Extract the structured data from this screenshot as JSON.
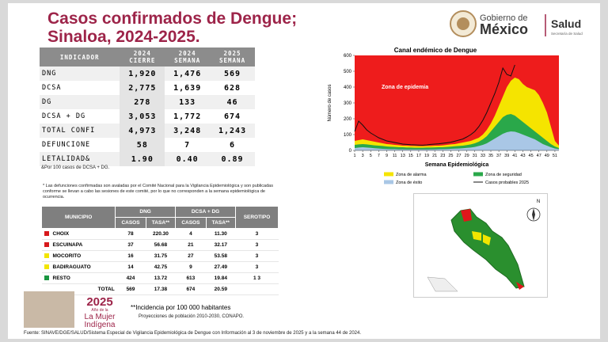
{
  "header": {
    "title_lines": [
      "Casos confirmados de Dengue;",
      "Sinaloa, 2024-2025."
    ],
    "gov_small": "Gobierno de",
    "gov_big": "México",
    "dept": "Salud",
    "dept_small": "Secretaría de Salud"
  },
  "table1": {
    "indicator": "INDICADOR",
    "columns": [
      [
        "2024",
        "CIERRE"
      ],
      [
        "2024",
        "SEMANA"
      ],
      [
        "2025",
        "SEMANA"
      ]
    ],
    "rows": [
      [
        "DNG",
        "1,920",
        "1,476",
        "569"
      ],
      [
        "DCSA",
        "2,775",
        "1,639",
        "628"
      ],
      [
        "DG",
        "278",
        "133",
        "46"
      ],
      [
        "DCSA + DG",
        "3,053",
        "1,772",
        "674"
      ],
      [
        "TOTAL CONFI",
        "4,973",
        "3,248",
        "1,243"
      ],
      [
        "DEFUNCIONE",
        "58",
        "7",
        "6"
      ],
      [
        "LETALIDAD&",
        "1.90",
        "0.40",
        "0.89"
      ]
    ],
    "note": "&Por 100 casos de DCSA + DG."
  },
  "footnote": "* Las defunciones confirmadas son avaladas por el Comité Nacional para la Vigilancia Epidemiológica y son publicadas conforme se llevan a cabo las sesiones de este comité, por lo que no corresponden a la semana epidemiológica de ocurrencia.",
  "table2": {
    "header_top": [
      "MUNICIPIO",
      "DNG",
      "DCSA + DG",
      "SEROTIPO"
    ],
    "header_sub": [
      "CASOS",
      "TASA**",
      "CASOS",
      "TASA**"
    ],
    "rows": [
      [
        "CHOIX",
        "78",
        "220.30",
        "4",
        "11.30",
        "3"
      ],
      [
        "ESCUINAPA",
        "37",
        "56.68",
        "21",
        "32.17",
        "3"
      ],
      [
        "MOCORITO",
        "16",
        "31.75",
        "27",
        "53.58",
        "3"
      ],
      [
        "BADIRAGUATO",
        "14",
        "42.75",
        "9",
        "27.49",
        "3"
      ],
      [
        "RESTO",
        "424",
        "13.72",
        "613",
        "19.84",
        "1   3"
      ],
      [
        "TOTAL",
        "569",
        "17.38",
        "674",
        "20.59"
      ]
    ],
    "row_colors": [
      "#d7191c",
      "#d7191c",
      "#f2e500",
      "#f2e500",
      "#1a9641",
      null
    ]
  },
  "incidence_note": "**Incidencia por 100 000 habitantes",
  "population_note": "Proyecciones de población 2010-2030,  CONAPO.",
  "logo2025": {
    "year": "2025",
    "small": "Año de la",
    "line1": "La Mujer",
    "line2": "Indígena"
  },
  "map": {
    "north": "N"
  },
  "source": "Fuente: SINAVE/DGE/SALUD/Sistema Especial de Vigilancia Epidemiológica de Dengue con Información al 3 de noviembre de 2025 y a la semana 44 de 2024.",
  "chart_data": {
    "type": "area",
    "title": "Canal endémico de Dengue",
    "ylabel": "Número de casos",
    "xlabel": "Semana Epidemiológica",
    "annotation": "Zona de epidemia",
    "epidemic_color": "#ee1c1c",
    "x": [
      1,
      2,
      3,
      4,
      5,
      6,
      7,
      8,
      9,
      10,
      11,
      12,
      13,
      14,
      15,
      16,
      17,
      18,
      19,
      20,
      21,
      22,
      23,
      24,
      25,
      26,
      27,
      28,
      29,
      30,
      31,
      32,
      33,
      34,
      35,
      36,
      37,
      38,
      39,
      40,
      41,
      42,
      43,
      44,
      45,
      46,
      47,
      48,
      49,
      50,
      51,
      52
    ],
    "xlim": [
      1,
      52
    ],
    "xticks": [
      1,
      3,
      5,
      7,
      9,
      11,
      13,
      15,
      17,
      19,
      21,
      23,
      25,
      27,
      29,
      31,
      33,
      35,
      37,
      39,
      41,
      43,
      45,
      47,
      49,
      51
    ],
    "ylim": [
      0,
      600
    ],
    "yticks": [
      0,
      100,
      200,
      300,
      400,
      500,
      600
    ],
    "series": [
      {
        "name": "Zona de alarma",
        "color": "#f5e400",
        "kind": "area",
        "values": [
          60,
          65,
          70,
          65,
          60,
          55,
          50,
          45,
          40,
          38,
          35,
          33,
          30,
          30,
          28,
          28,
          27,
          27,
          28,
          28,
          30,
          30,
          32,
          35,
          38,
          40,
          45,
          50,
          55,
          60,
          70,
          80,
          100,
          130,
          170,
          220,
          280,
          340,
          400,
          440,
          460,
          450,
          420,
          400,
          390,
          380,
          350,
          300,
          240,
          150,
          60,
          30
        ]
      },
      {
        "name": "Zona de seguridad",
        "color": "#2aa84a",
        "kind": "area",
        "values": [
          35,
          38,
          40,
          38,
          35,
          32,
          30,
          28,
          25,
          23,
          22,
          20,
          20,
          18,
          18,
          17,
          17,
          17,
          18,
          18,
          19,
          20,
          20,
          22,
          24,
          26,
          28,
          30,
          34,
          38,
          45,
          55,
          70,
          90,
          120,
          150,
          180,
          210,
          225,
          230,
          220,
          200,
          180,
          160,
          140,
          120,
          100,
          80,
          60,
          40,
          25,
          15
        ]
      },
      {
        "name": "Zona de éxito",
        "color": "#a9c7e6",
        "kind": "area",
        "values": [
          15,
          18,
          20,
          18,
          16,
          14,
          12,
          10,
          9,
          8,
          8,
          7,
          7,
          6,
          6,
          6,
          6,
          6,
          6,
          7,
          7,
          8,
          8,
          9,
          10,
          11,
          12,
          14,
          16,
          18,
          22,
          28,
          35,
          45,
          60,
          75,
          90,
          105,
          115,
          120,
          118,
          110,
          100,
          90,
          80,
          70,
          55,
          40,
          30,
          20,
          12,
          8
        ]
      },
      {
        "name": "Casos probables 2025",
        "color": "#111111",
        "kind": "line",
        "values": [
          120,
          185,
          160,
          130,
          110,
          95,
          80,
          70,
          60,
          55,
          50,
          45,
          40,
          38,
          36,
          35,
          34,
          33,
          35,
          38,
          40,
          42,
          45,
          48,
          52,
          58,
          65,
          72,
          85,
          100,
          120,
          150,
          190,
          240,
          300,
          360,
          430,
          520,
          480,
          470,
          540,
          null,
          null,
          null,
          null,
          null,
          null,
          null,
          null,
          null,
          null,
          null
        ]
      }
    ]
  }
}
